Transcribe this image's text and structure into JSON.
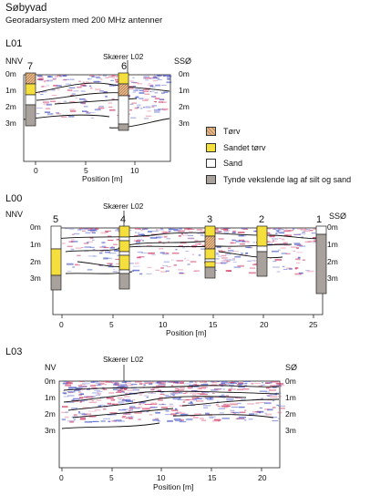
{
  "header": {
    "title": "Søbyvad",
    "subtitle": "Georadarsystem med 200 MHz antenner"
  },
  "colors": {
    "torv": "#e7b98b",
    "sandet_torv": "#f5df3c",
    "sand": "#ffffff",
    "silt_sand": "#a9a29c",
    "radar_red": "#d0406a",
    "radar_blue": "#4a58c8"
  },
  "legend": [
    {
      "key": "torv",
      "label": "Tørv"
    },
    {
      "key": "sandet_torv",
      "label": "Sandet tørv"
    },
    {
      "key": "sand",
      "label": "Sand"
    },
    {
      "key": "silt_sand",
      "label": "Tynde vekslende lag af silt og sand"
    }
  ],
  "profiles": [
    {
      "name": "L01",
      "left_dir": "NNV",
      "right_dir": "SSØ",
      "crossing": "Skærer L02",
      "depth_labels": [
        "0m",
        "1m",
        "2m",
        "3m"
      ],
      "x_ticks": [
        "0",
        "5",
        "10"
      ],
      "x_label": "Position [m]",
      "boreholes": [
        "7",
        "6"
      ]
    },
    {
      "name": "L00",
      "left_dir": "NNV",
      "right_dir": "SSØ",
      "crossing": "Skærer L02",
      "depth_labels": [
        "0m",
        "1m",
        "2m",
        "3m"
      ],
      "x_ticks": [
        "0",
        "5",
        "10",
        "15",
        "20",
        "25"
      ],
      "x_label": "Position [m]",
      "boreholes": [
        "5",
        "4",
        "3",
        "2",
        "1"
      ]
    },
    {
      "name": "L03",
      "left_dir": "NV",
      "right_dir": "SØ",
      "crossing": "Skærer L02",
      "depth_labels": [
        "0m",
        "1m",
        "2m",
        "3m"
      ],
      "x_ticks": [
        "0",
        "5",
        "10",
        "15",
        "20"
      ],
      "x_label": "Position [m]",
      "boreholes": []
    }
  ]
}
